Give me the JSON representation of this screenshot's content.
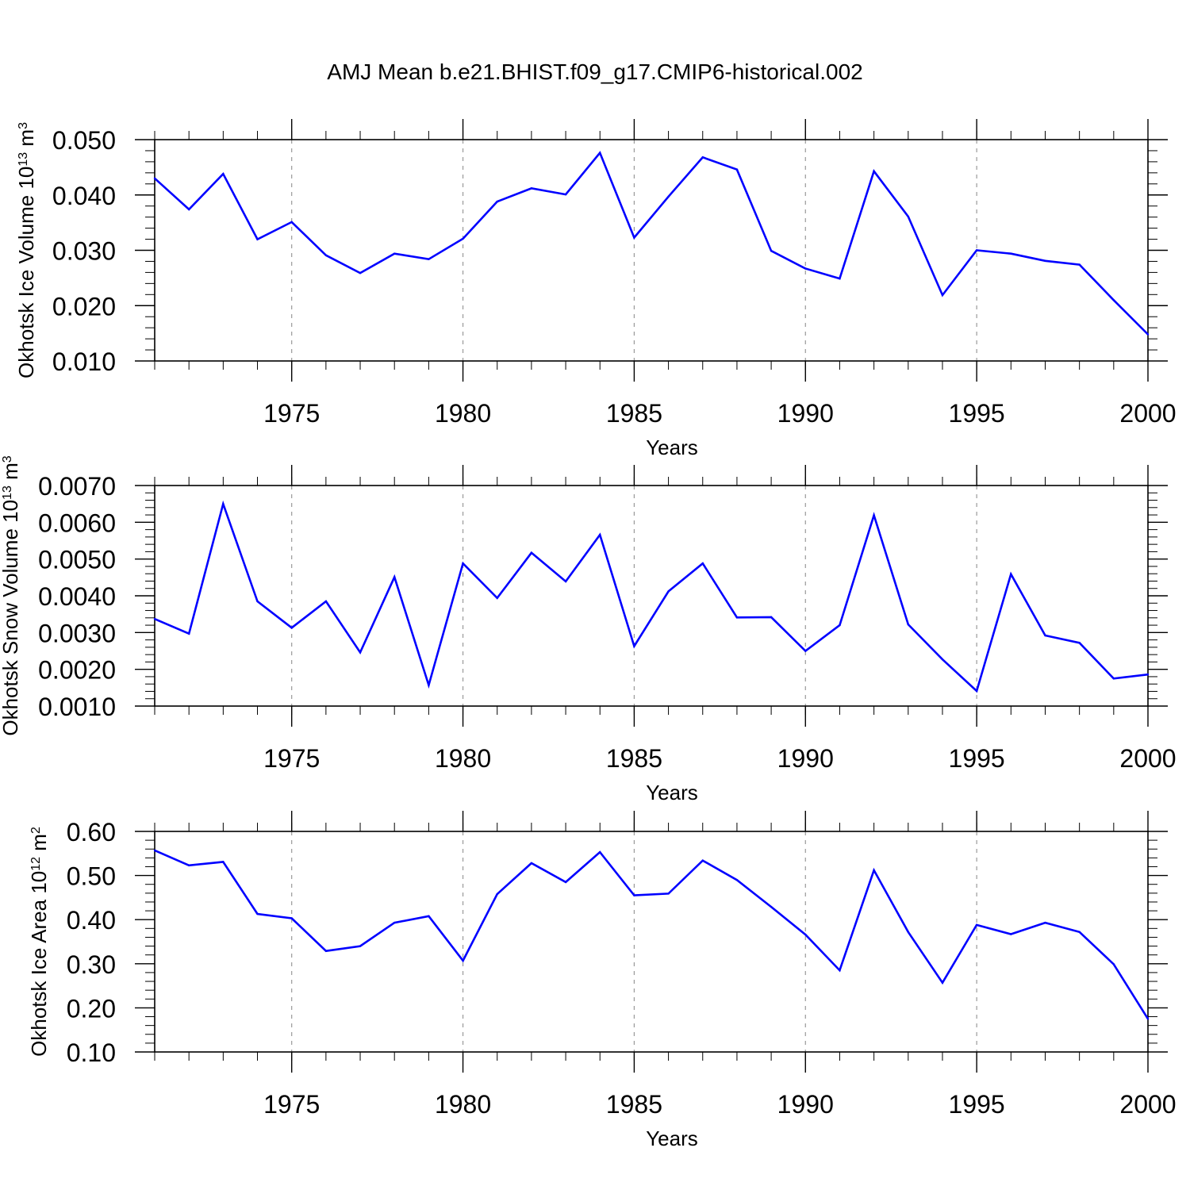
{
  "figure": {
    "title": "AMJ Mean b.e21.BHIST.f09_g17.CMIP6-historical.002",
    "line_color": "#0000ff",
    "grid_color": "#999999",
    "axis_color": "#000000"
  },
  "chart_data": [
    {
      "type": "line",
      "title": "AMJ Mean b.e21.BHIST.f09_g17.CMIP6-historical.002",
      "xlabel": "Years",
      "ylabel": {
        "text": "Okhotsk Ice Volume 10",
        "exponent": "13",
        "unit": " m",
        "unit_exponent": "3"
      },
      "xlim": [
        1971,
        2000
      ],
      "ylim": [
        0.01,
        0.05
      ],
      "xticks": [
        "1975",
        "1980",
        "1985",
        "1990",
        "1995",
        "2000"
      ],
      "yticks": [
        "0.010",
        "0.020",
        "0.030",
        "0.040",
        "0.050"
      ],
      "grid": "vertical dashed at major x ticks",
      "x": [
        1971,
        1972,
        1973,
        1974,
        1975,
        1976,
        1977,
        1978,
        1979,
        1980,
        1981,
        1982,
        1983,
        1984,
        1985,
        1986,
        1987,
        1988,
        1989,
        1990,
        1991,
        1992,
        1993,
        1994,
        1995,
        1996,
        1997,
        1998,
        1999,
        2000
      ],
      "series": [
        {
          "values": [
            0.043,
            0.0374,
            0.0438,
            0.032,
            0.0351,
            0.0291,
            0.0259,
            0.0294,
            0.0284,
            0.0321,
            0.0388,
            0.0412,
            0.0401,
            0.0476,
            0.0323,
            0.0397,
            0.0468,
            0.0446,
            0.0299,
            0.0267,
            0.0249,
            0.0443,
            0.0361,
            0.0219,
            0.03,
            0.0294,
            0.0281,
            0.0274,
            0.021,
            0.0148
          ]
        }
      ]
    },
    {
      "type": "line",
      "xlabel": "Years",
      "ylabel": {
        "text": "Okhotsk Snow Volume 10",
        "exponent": "13",
        "unit": " m",
        "unit_exponent": "3"
      },
      "xlim": [
        1971,
        2000
      ],
      "ylim": [
        0.001,
        0.007
      ],
      "xticks": [
        "1975",
        "1980",
        "1985",
        "1990",
        "1995",
        "2000"
      ],
      "yticks": [
        "0.0010",
        "0.0020",
        "0.0030",
        "0.0040",
        "0.0050",
        "0.0060",
        "0.0070"
      ],
      "grid": "vertical dashed at major x ticks",
      "x": [
        1971,
        1972,
        1973,
        1974,
        1975,
        1976,
        1977,
        1978,
        1979,
        1980,
        1981,
        1982,
        1983,
        1984,
        1985,
        1986,
        1987,
        1988,
        1989,
        1990,
        1991,
        1992,
        1993,
        1994,
        1995,
        1996,
        1997,
        1998,
        1999,
        2000
      ],
      "series": [
        {
          "values": [
            0.00337,
            0.00297,
            0.0065,
            0.00385,
            0.00313,
            0.00385,
            0.00246,
            0.00451,
            0.00157,
            0.00488,
            0.00394,
            0.00517,
            0.00439,
            0.00566,
            0.00263,
            0.00412,
            0.00488,
            0.00341,
            0.00342,
            0.0025,
            0.0032,
            0.00619,
            0.00322,
            0.00227,
            0.00141,
            0.00459,
            0.00292,
            0.00272,
            0.00175,
            0.00186
          ]
        }
      ]
    },
    {
      "type": "line",
      "xlabel": "Years",
      "ylabel": {
        "text": "Okhotsk Ice Area 10",
        "exponent": "12",
        "unit": " m",
        "unit_exponent": "2"
      },
      "xlim": [
        1971,
        2000
      ],
      "ylim": [
        0.1,
        0.6
      ],
      "xticks": [
        "1975",
        "1980",
        "1985",
        "1990",
        "1995",
        "2000"
      ],
      "yticks": [
        "0.10",
        "0.20",
        "0.30",
        "0.40",
        "0.50",
        "0.60"
      ],
      "grid": "vertical dashed at major x ticks",
      "x": [
        1971,
        1972,
        1973,
        1974,
        1975,
        1976,
        1977,
        1978,
        1979,
        1980,
        1981,
        1982,
        1983,
        1984,
        1985,
        1986,
        1987,
        1988,
        1989,
        1990,
        1991,
        1992,
        1993,
        1994,
        1995,
        1996,
        1997,
        1998,
        1999,
        2000
      ],
      "series": [
        {
          "values": [
            0.557,
            0.523,
            0.531,
            0.413,
            0.403,
            0.329,
            0.34,
            0.393,
            0.408,
            0.307,
            0.458,
            0.528,
            0.485,
            0.553,
            0.455,
            0.459,
            0.534,
            0.49,
            0.429,
            0.366,
            0.285,
            0.512,
            0.372,
            0.257,
            0.388,
            0.367,
            0.393,
            0.372,
            0.299,
            0.175
          ]
        }
      ]
    }
  ]
}
